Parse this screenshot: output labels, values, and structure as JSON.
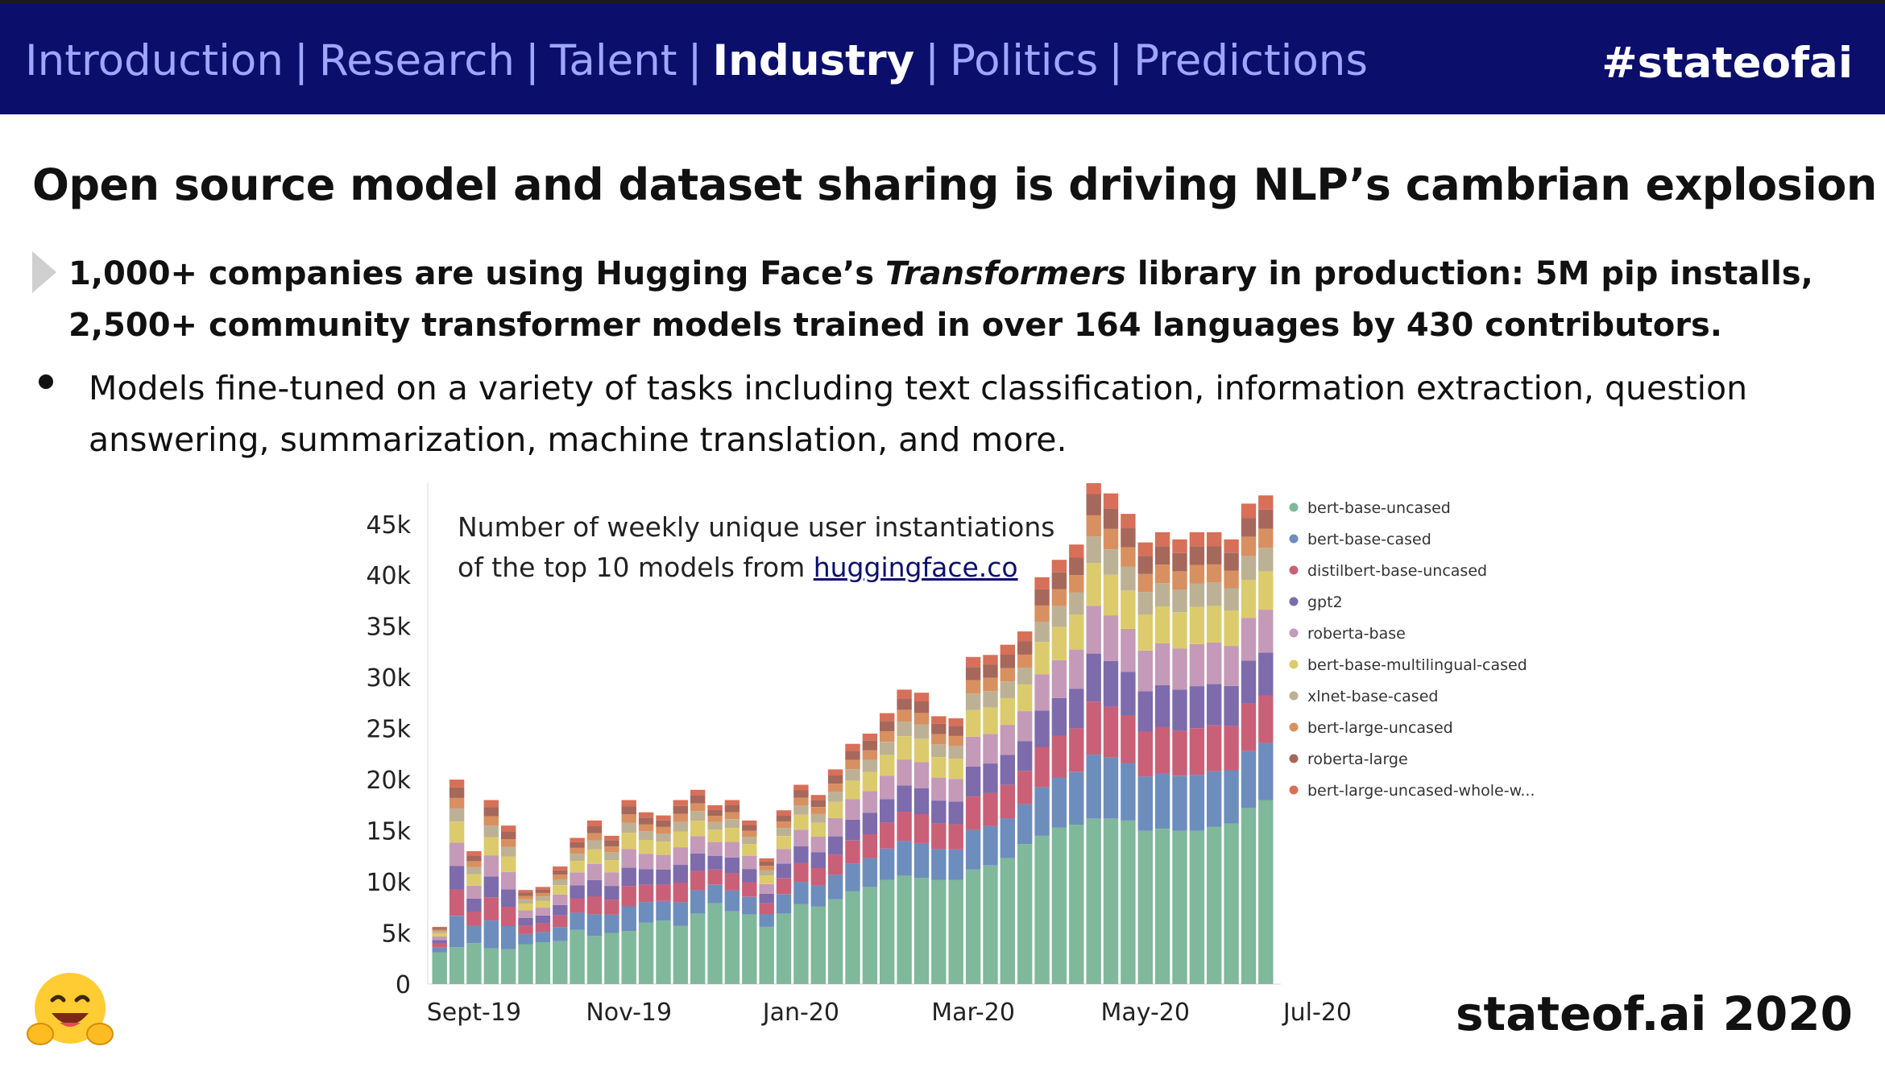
{
  "nav": {
    "links": [
      "Introduction",
      "Research",
      "Talent",
      "Industry",
      "Politics",
      "Predictions"
    ],
    "active": "Industry",
    "separator": "|",
    "hashtag": "#stateofai"
  },
  "slide": {
    "title": "Open source model and dataset sharing is driving NLP’s cambrian explosion",
    "lead_part1": "1,000+ companies are using Hugging Face’s ",
    "lead_italic": "Transformers",
    "lead_part2": " library in production: 5M pip installs, 2,500+ community transformer models trained in over 164 languages by 430 contributors.",
    "bullet": "Models fine-tuned on a variety of tasks including text classification, information extraction, question answering, summarization, machine translation, and more."
  },
  "chart_caption": {
    "line1": "Number of weekly unique user instantiations",
    "line2_prefix": "of the top 10 models from ",
    "link_text": "huggingface.co"
  },
  "chart_data": {
    "type": "bar",
    "stacked": true,
    "x_tick_labels": [
      "Sept-19",
      "Nov-19",
      "Jan-20",
      "Mar-20",
      "May-20",
      "Jul-20"
    ],
    "x_tick_label_bar_index": [
      2,
      11,
      21,
      31,
      41,
      51
    ],
    "ylim": [
      0,
      49000
    ],
    "y_ticks": [
      0,
      5000,
      10000,
      15000,
      20000,
      25000,
      30000,
      35000,
      40000,
      45000
    ],
    "y_tick_labels": [
      "0",
      "5k",
      "10k",
      "15k",
      "20k",
      "25k",
      "30k",
      "35k",
      "40k",
      "45k"
    ],
    "legend_position": "right",
    "totals": [
      5600,
      20000,
      13000,
      18000,
      15500,
      9200,
      9500,
      11500,
      14300,
      16000,
      14500,
      18000,
      16800,
      16500,
      18000,
      19000,
      17500,
      18000,
      16000,
      12300,
      17000,
      19500,
      18500,
      21000,
      23500,
      24500,
      26500,
      28800,
      28500,
      26200,
      26000,
      32000,
      32200,
      33200,
      34500,
      39800,
      41500,
      43000,
      49500,
      48000,
      46000,
      43200,
      44200,
      43500,
      44200,
      44200,
      43500,
      47000,
      47800
    ],
    "series": [
      {
        "name": "bert-base-uncased",
        "color": "#7fb89b",
        "share": 0.36
      },
      {
        "name": "bert-base-cased",
        "color": "#6d8dbd",
        "share": 0.12
      },
      {
        "name": "distilbert-base-uncased",
        "color": "#c96078",
        "share": 0.1
      },
      {
        "name": "gpt2",
        "color": "#7d6bac",
        "share": 0.09
      },
      {
        "name": "roberta-base",
        "color": "#c49ab8",
        "share": 0.09
      },
      {
        "name": "bert-base-multilingual-cased",
        "color": "#dccb6c",
        "share": 0.08
      },
      {
        "name": "xlnet-base-cased",
        "color": "#bdb195",
        "share": 0.05
      },
      {
        "name": "bert-large-uncased",
        "color": "#d89060",
        "share": 0.04
      },
      {
        "name": "roberta-large",
        "color": "#a6685b",
        "share": 0.04
      },
      {
        "name": "bert-large-uncased-whole-w...",
        "color": "#d86f58",
        "share": 0.03
      }
    ],
    "bottom_series_override": [
      3100,
      3600,
      4000,
      3500,
      3400,
      3900,
      4100,
      4200,
      5300,
      4700,
      5000,
      5200,
      6000,
      6200,
      5700,
      6900,
      7900,
      7100,
      6800,
      5600,
      6900,
      7800,
      7600,
      8300,
      9100,
      9500,
      10200,
      10600,
      10400,
      10200,
      10200,
      11200,
      11600,
      12300,
      13700,
      14500,
      15300,
      15600,
      16200,
      16200,
      16000,
      15000,
      15200,
      15000,
      15000,
      15400,
      15700,
      17200,
      18000
    ]
  },
  "footer": {
    "brand": "stateof.ai 2020"
  },
  "icons": {
    "logo": "hugging-face-emoji-icon"
  }
}
